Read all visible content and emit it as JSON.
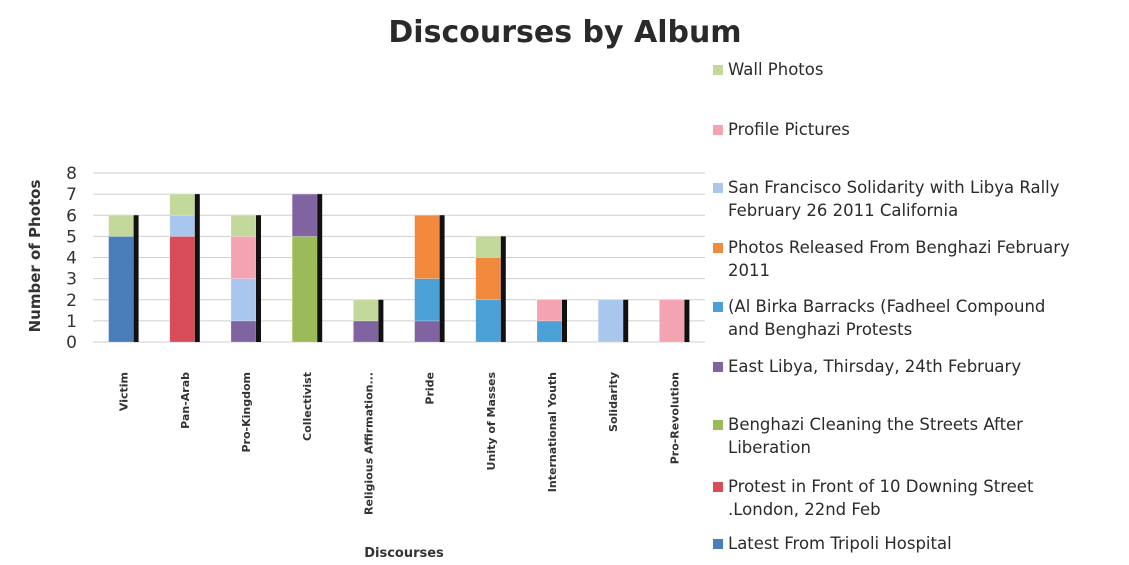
{
  "chart_data": {
    "type": "bar",
    "stacked": true,
    "title": "Discourses by Album",
    "xlabel": "Discourses",
    "ylabel": "Number of Photos",
    "ylim": [
      0,
      8
    ],
    "yticks": [
      "0",
      "1",
      "2",
      "3",
      "4",
      "5",
      "6",
      "7",
      "8"
    ],
    "grid": true,
    "legend_position": "right",
    "categories": [
      "Victim",
      "Pan-Arab",
      "Pro-Kingdom",
      "Collectivist",
      "Religious Affirmation...",
      "Pride",
      "Unity of Masses",
      "International Youth",
      "Solidarity",
      "Pro-Revolution"
    ],
    "totals": [
      6,
      7,
      6,
      7,
      2,
      6,
      5,
      2,
      2,
      2
    ],
    "series": [
      {
        "name": "Latest From Tripoli Hospital",
        "color": "#4a7ebb",
        "values": [
          5,
          0,
          0,
          0,
          0,
          0,
          0,
          0,
          0,
          0
        ]
      },
      {
        "name": "Protest in Front of 10 Downing Street .London, 22nd Feb",
        "color": "#d94c5a",
        "values": [
          0,
          5,
          0,
          0,
          0,
          0,
          0,
          0,
          0,
          0
        ]
      },
      {
        "name": "Benghazi Cleaning the Streets After Liberation",
        "color": "#9bbb59",
        "values": [
          0,
          0,
          0,
          5,
          0,
          0,
          0,
          0,
          0,
          0
        ]
      },
      {
        "name": "East Libya, Thirsday, 24th February",
        "color": "#8064a2",
        "values": [
          0,
          0,
          1,
          2,
          1,
          1,
          0,
          0,
          0,
          0
        ]
      },
      {
        "name": "(Al Birka Barracks (Fadheel Compound and Benghazi Protests",
        "color": "#4ba0d6",
        "values": [
          0,
          0,
          0,
          0,
          0,
          2,
          2,
          1,
          0,
          0
        ]
      },
      {
        "name": "Photos Released From Benghazi February 2011",
        "color": "#f18a3c",
        "values": [
          0,
          0,
          0,
          0,
          0,
          3,
          2,
          0,
          0,
          0
        ]
      },
      {
        "name": "San Francisco Solidarity with Libya Rally February 26 2011 California",
        "color": "#a9c7ee",
        "values": [
          0,
          1,
          2,
          0,
          0,
          0,
          0,
          0,
          2,
          0
        ]
      },
      {
        "name": "Profile Pictures",
        "color": "#f4a3b2",
        "values": [
          0,
          0,
          2,
          0,
          0,
          0,
          0,
          1,
          0,
          2
        ]
      },
      {
        "name": "Wall Photos",
        "color": "#c3d99b",
        "values": [
          1,
          1,
          1,
          0,
          1,
          0,
          1,
          0,
          0,
          0
        ]
      }
    ],
    "legend": [
      [
        "Wall Photos"
      ],
      [
        "Profile Pictures"
      ],
      [
        "San Francisco Solidarity with Libya Rally",
        "February 26 2011 California"
      ],
      [
        "Photos Released From Benghazi February",
        "2011"
      ],
      [
        "(Al Birka Barracks (Fadheel Compound",
        "and Benghazi Protests"
      ],
      [
        "East Libya, Thirsday, 24th February"
      ],
      [
        "Benghazi Cleaning the Streets After",
        "Liberation"
      ],
      [
        "Protest in Front of 10 Downing Street",
        ".London, 22nd Feb"
      ],
      [
        "Latest From Tripoli Hospital"
      ]
    ],
    "legend_colors": [
      "#c3d99b",
      "#f4a3b2",
      "#a9c7ee",
      "#f18a3c",
      "#4ba0d6",
      "#8064a2",
      "#9bbb59",
      "#d94c5a",
      "#4a7ebb"
    ]
  }
}
